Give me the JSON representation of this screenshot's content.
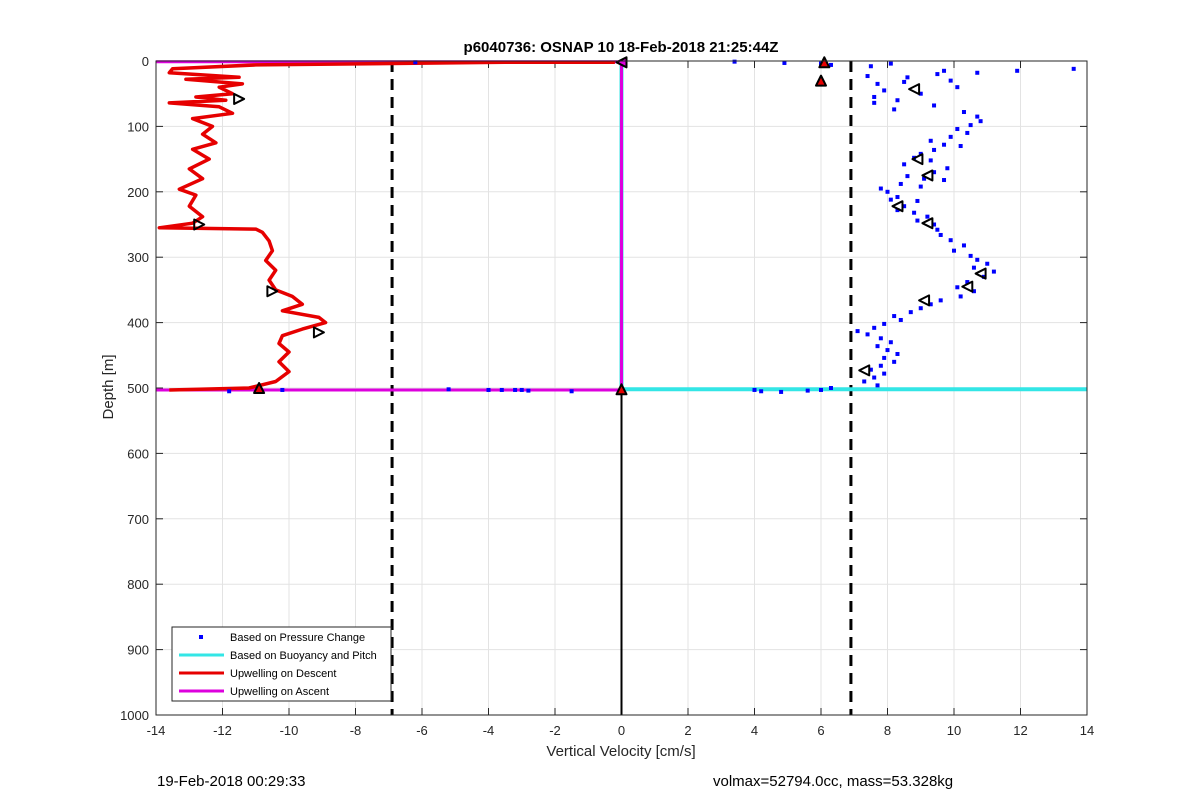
{
  "footer": {
    "left": "19-Feb-2018 00:29:33",
    "right": "volmax=52794.0cc, mass=53.328kg"
  },
  "chart_data": {
    "type": "line",
    "title": "p6040736: OSNAP 10 18-Feb-2018 21:25:44Z",
    "xlabel": "Vertical Velocity [cm/s]",
    "ylabel": "Depth [m]",
    "xlim": [
      -14,
      14
    ],
    "ylim": [
      0,
      1000
    ],
    "y_reversed": true,
    "grid": true,
    "legend_position": "bottom-left",
    "xticks": [
      -14,
      -12,
      -10,
      -8,
      -6,
      -4,
      -2,
      0,
      2,
      4,
      6,
      8,
      10,
      12,
      14
    ],
    "yticks": [
      0,
      100,
      200,
      300,
      400,
      500,
      600,
      700,
      800,
      900,
      1000
    ],
    "colors": {
      "pressure": "#0000ff",
      "buoyancy": "#33e6e6",
      "descent": "#e60000",
      "ascent": "#dd00dd",
      "reference": "#000000"
    },
    "legend": [
      {
        "label": "Based on Pressure Change",
        "style": "dot",
        "color": "#0000ff"
      },
      {
        "label": "Based on Buoyancy and Pitch",
        "style": "line",
        "color": "#33e6e6"
      },
      {
        "label": "Upwelling on Descent",
        "style": "line",
        "color": "#e60000"
      },
      {
        "label": "Upwelling on Ascent",
        "style": "line",
        "color": "#dd00dd"
      }
    ],
    "reference_lines": {
      "dashed_x": [
        -6.9,
        6.9
      ],
      "solid_vertical": {
        "x": 0,
        "from": 505,
        "to": 1000
      }
    },
    "series": [
      {
        "name": "Upwelling on Descent",
        "kind": "line",
        "points": [
          [
            -0.2,
            2
          ],
          [
            -3.5,
            2
          ],
          [
            -11,
            6
          ],
          [
            -13.5,
            12
          ],
          [
            -13.6,
            18
          ],
          [
            -11.5,
            25
          ],
          [
            -13.1,
            28
          ],
          [
            -11.4,
            35
          ],
          [
            -12.1,
            40
          ],
          [
            -11.7,
            50
          ],
          [
            -12.8,
            55
          ],
          [
            -11.9,
            60
          ],
          [
            -13.6,
            64
          ],
          [
            -12.1,
            70
          ],
          [
            -11.7,
            80
          ],
          [
            -12.9,
            88
          ],
          [
            -12.3,
            100
          ],
          [
            -12.6,
            112
          ],
          [
            -12.2,
            125
          ],
          [
            -12.9,
            135
          ],
          [
            -12.4,
            150
          ],
          [
            -13.0,
            165
          ],
          [
            -12.6,
            180
          ],
          [
            -13.3,
            196
          ],
          [
            -12.8,
            205
          ],
          [
            -13.0,
            222
          ],
          [
            -12.6,
            238
          ],
          [
            -12.9,
            248
          ],
          [
            -13.9,
            255
          ],
          [
            -11.0,
            257
          ],
          [
            -10.8,
            262
          ],
          [
            -10.6,
            275
          ],
          [
            -10.5,
            290
          ],
          [
            -10.7,
            305
          ],
          [
            -10.4,
            320
          ],
          [
            -10.6,
            335
          ],
          [
            -10.4,
            350
          ],
          [
            -9.9,
            360
          ],
          [
            -9.6,
            372
          ],
          [
            -10.2,
            382
          ],
          [
            -9.1,
            392
          ],
          [
            -8.9,
            400
          ],
          [
            -9.6,
            410
          ],
          [
            -10.2,
            420
          ],
          [
            -10.3,
            432
          ],
          [
            -10.0,
            445
          ],
          [
            -10.3,
            460
          ],
          [
            -10.0,
            475
          ],
          [
            -10.4,
            490
          ],
          [
            -11.2,
            500
          ],
          [
            -13.6,
            503
          ]
        ]
      },
      {
        "name": "Upwelling on Ascent",
        "kind": "line",
        "points": [
          [
            -14,
            1
          ],
          [
            0,
            1
          ],
          [
            0,
            503
          ],
          [
            -14,
            503
          ]
        ]
      },
      {
        "name": "Based on Buoyancy and Pitch",
        "kind": "line",
        "points": [
          [
            0,
            1
          ],
          [
            0,
            502
          ],
          [
            14,
            502
          ]
        ]
      },
      {
        "name": "Based on Pressure Change",
        "kind": "scatter",
        "points": [
          [
            3.4,
            1
          ],
          [
            4.9,
            3
          ],
          [
            6.0,
            4
          ],
          [
            6.3,
            6
          ],
          [
            7.5,
            8
          ],
          [
            8.1,
            4
          ],
          [
            13.6,
            12
          ],
          [
            11.9,
            15
          ],
          [
            10.7,
            18
          ],
          [
            9.5,
            20
          ],
          [
            9.7,
            15
          ],
          [
            7.4,
            23
          ],
          [
            8.6,
            25
          ],
          [
            9.9,
            30
          ],
          [
            8.5,
            32
          ],
          [
            7.7,
            35
          ],
          [
            10.1,
            40
          ],
          [
            7.9,
            45
          ],
          [
            9.0,
            50
          ],
          [
            7.6,
            55
          ],
          [
            8.3,
            60
          ],
          [
            7.6,
            64
          ],
          [
            9.4,
            68
          ],
          [
            8.2,
            74
          ],
          [
            10.3,
            78
          ],
          [
            10.7,
            85
          ],
          [
            10.8,
            92
          ],
          [
            10.5,
            98
          ],
          [
            10.1,
            104
          ],
          [
            10.4,
            110
          ],
          [
            9.9,
            116
          ],
          [
            9.3,
            122
          ],
          [
            9.7,
            128
          ],
          [
            10.2,
            130
          ],
          [
            9.4,
            136
          ],
          [
            9.0,
            142
          ],
          [
            8.8,
            148
          ],
          [
            9.3,
            152
          ],
          [
            8.5,
            158
          ],
          [
            9.8,
            164
          ],
          [
            9.4,
            170
          ],
          [
            8.6,
            176
          ],
          [
            9.1,
            180
          ],
          [
            9.7,
            182
          ],
          [
            8.4,
            188
          ],
          [
            9.0,
            192
          ],
          [
            7.8,
            195
          ],
          [
            8.0,
            200
          ],
          [
            8.3,
            208
          ],
          [
            8.1,
            212
          ],
          [
            8.9,
            214
          ],
          [
            8.5,
            222
          ],
          [
            8.3,
            228
          ],
          [
            8.8,
            232
          ],
          [
            9.2,
            238
          ],
          [
            8.9,
            244
          ],
          [
            9.4,
            250
          ],
          [
            9.5,
            258
          ],
          [
            9.6,
            266
          ],
          [
            9.9,
            274
          ],
          [
            10.3,
            282
          ],
          [
            10.0,
            290
          ],
          [
            10.5,
            298
          ],
          [
            10.7,
            304
          ],
          [
            11.0,
            310
          ],
          [
            10.6,
            316
          ],
          [
            11.2,
            322
          ],
          [
            10.9,
            330
          ],
          [
            10.4,
            338
          ],
          [
            10.1,
            346
          ],
          [
            10.6,
            352
          ],
          [
            10.2,
            360
          ],
          [
            9.6,
            366
          ],
          [
            9.3,
            372
          ],
          [
            9.0,
            378
          ],
          [
            8.7,
            384
          ],
          [
            8.2,
            390
          ],
          [
            8.4,
            396
          ],
          [
            7.9,
            402
          ],
          [
            7.6,
            408
          ],
          [
            7.1,
            413
          ],
          [
            7.4,
            418
          ],
          [
            7.8,
            424
          ],
          [
            8.1,
            430
          ],
          [
            7.7,
            436
          ],
          [
            8.0,
            442
          ],
          [
            8.3,
            448
          ],
          [
            7.9,
            454
          ],
          [
            8.2,
            460
          ],
          [
            7.8,
            466
          ],
          [
            7.5,
            472
          ],
          [
            7.9,
            478
          ],
          [
            7.6,
            484
          ],
          [
            7.3,
            490
          ],
          [
            7.7,
            496
          ],
          [
            6.3,
            500
          ],
          [
            6.0,
            503
          ],
          [
            4.0,
            503
          ],
          [
            4.8,
            506
          ],
          [
            4.2,
            505
          ],
          [
            5.6,
            504
          ],
          [
            -5.2,
            502
          ],
          [
            -4.0,
            503
          ],
          [
            -3.6,
            503
          ],
          [
            -3.2,
            503
          ],
          [
            -3.0,
            503
          ],
          [
            -2.8,
            504
          ],
          [
            -1.5,
            505
          ],
          [
            -10.2,
            503
          ],
          [
            -11.8,
            505
          ],
          [
            -6.2,
            2
          ]
        ]
      },
      {
        "name": "descent markers",
        "kind": "marker",
        "shape": "triangle-right",
        "points": [
          [
            -11.5,
            58
          ],
          [
            -12.7,
            250
          ],
          [
            -10.5,
            352
          ],
          [
            -9.1,
            415
          ]
        ]
      },
      {
        "name": "pressure markers",
        "kind": "marker",
        "shape": "triangle-left",
        "points": [
          [
            8.8,
            43
          ],
          [
            8.9,
            150
          ],
          [
            9.2,
            175
          ],
          [
            8.3,
            222
          ],
          [
            9.2,
            248
          ],
          [
            10.8,
            325
          ],
          [
            10.4,
            345
          ],
          [
            9.1,
            366
          ],
          [
            7.3,
            473
          ]
        ]
      },
      {
        "name": "start markers",
        "kind": "marker",
        "shape": "triangle-up",
        "points": [
          [
            6.1,
            2
          ],
          [
            6.0,
            30
          ],
          [
            -10.9,
            500
          ],
          [
            0.0,
            502
          ]
        ]
      },
      {
        "name": "origin marker",
        "kind": "marker",
        "shape": "triangle-left",
        "points": [
          [
            0.0,
            2
          ]
        ]
      }
    ]
  }
}
